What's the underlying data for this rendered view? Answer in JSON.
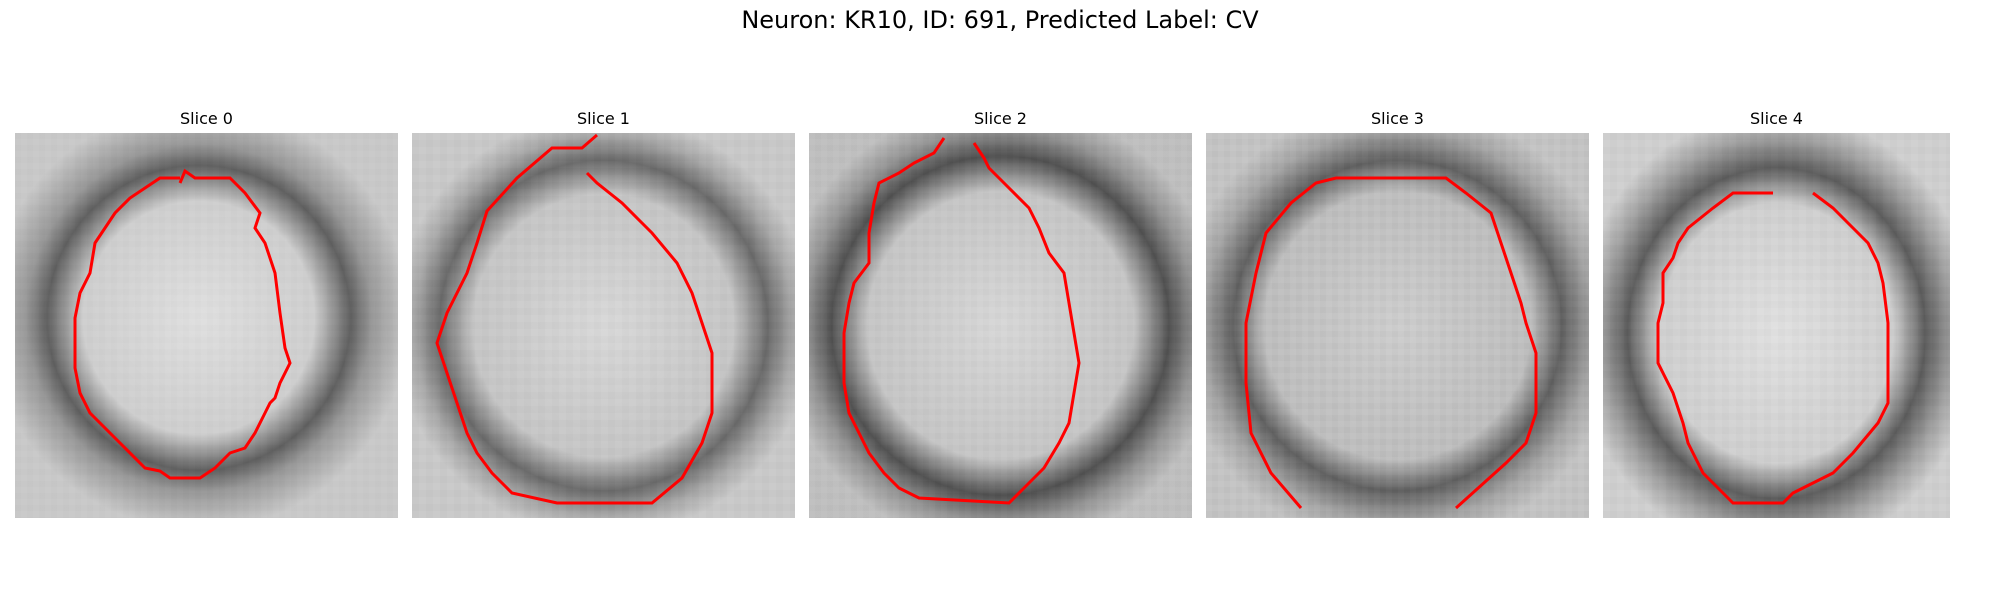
{
  "figure": {
    "title": "Neuron: KR10, ID: 691, Predicted Label: CV"
  },
  "panels": [
    {
      "label": "Slice 0"
    },
    {
      "label": "Slice 1"
    },
    {
      "label": "Slice 2"
    },
    {
      "label": "Slice 3"
    },
    {
      "label": "Slice 4"
    }
  ],
  "colors": {
    "contour": "#ff0000",
    "background": "#ffffff"
  }
}
